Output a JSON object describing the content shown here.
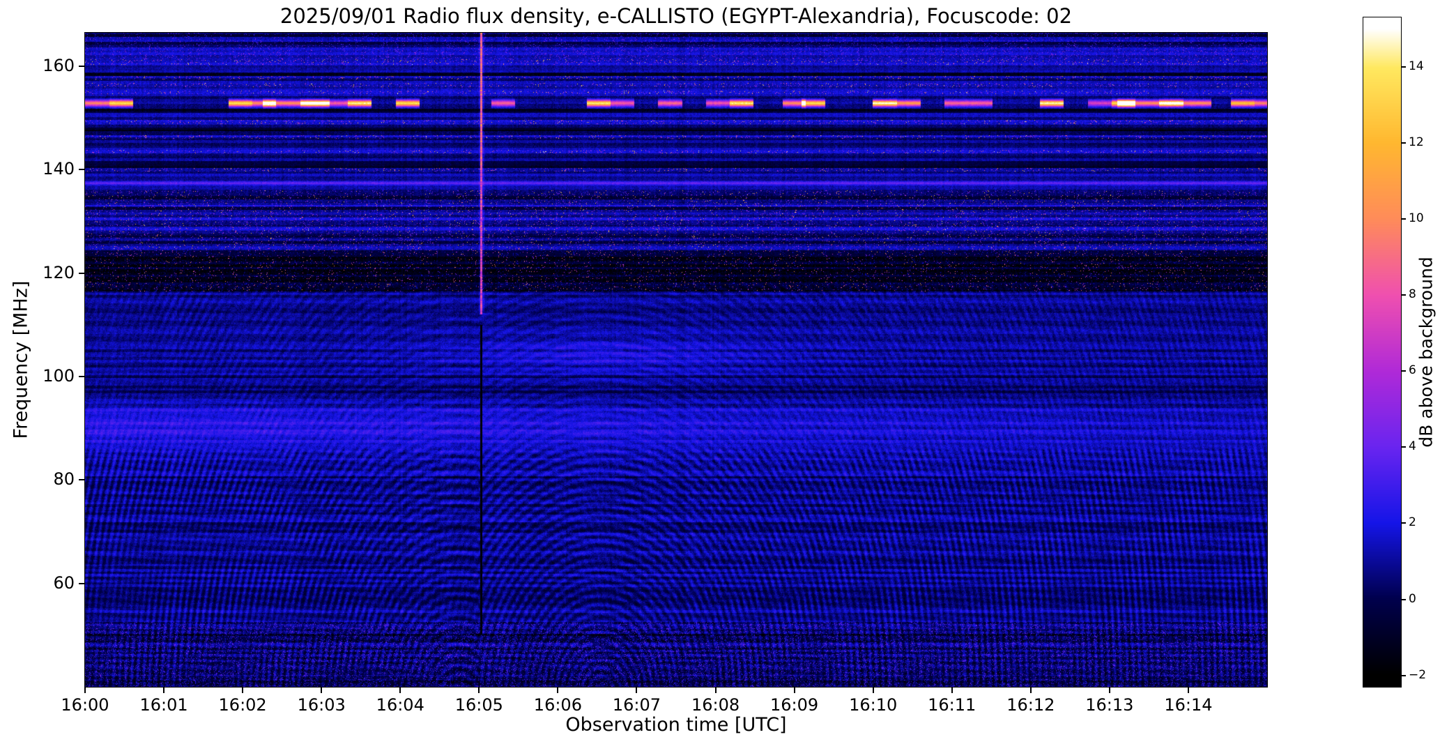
{
  "chart_data": {
    "type": "heatmap",
    "title": "2025/09/01  Radio flux density, e-CALLISTO (EGYPT-Alexandria), Focuscode: 02",
    "xlabel": "Observation time [UTC]",
    "ylabel": "Frequency [MHz]",
    "x_ticks": [
      "16:00",
      "16:01",
      "16:02",
      "16:03",
      "16:04",
      "16:05",
      "16:06",
      "16:07",
      "16:08",
      "16:09",
      "16:10",
      "16:11",
      "16:12",
      "16:13",
      "16:14"
    ],
    "x_range_minutes": [
      0,
      15
    ],
    "x_start_time_utc": "16:00",
    "y_ticks_mhz": [
      160,
      140,
      120,
      100,
      80,
      60
    ],
    "freq_range_mhz": [
      40,
      166.5
    ],
    "grid": false,
    "colorbar": {
      "label": "dB above background",
      "ticks": [
        14,
        12,
        10,
        8,
        6,
        4,
        2,
        0,
        -2
      ],
      "display_range": [
        -2.3,
        15.3
      ],
      "value_range_db": [
        -2,
        15
      ]
    },
    "colormap": {
      "name": "gnuplot2-like",
      "stops": [
        [
          0.0,
          "#000000"
        ],
        [
          0.118,
          "#00004d"
        ],
        [
          0.235,
          "#1515e8"
        ],
        [
          0.353,
          "#6a25f0"
        ],
        [
          0.47,
          "#b02ad8"
        ],
        [
          0.588,
          "#f050b0"
        ],
        [
          0.706,
          "#ff8c5a"
        ],
        [
          0.824,
          "#ffb830"
        ],
        [
          0.94,
          "#ffe960"
        ],
        [
          1.0,
          "#ffffff"
        ]
      ]
    },
    "features": [
      {
        "kind": "fringe_pattern",
        "desc": "Curved interference fringes across the band below ~118 MHz, strongest below ~86 MHz, arc systems centered near 16:06.5 and 16:04.75",
        "f_max": 118,
        "amp_strong": 0.85,
        "amp_weak": 0.45,
        "amp_split_mhz": 86,
        "centers": [
          {
            "t_min": 6.55,
            "f_mhz": 38,
            "k": 3.6
          },
          {
            "t_min": 4.75,
            "f_mhz": 34,
            "k": 3.2
          }
        ]
      },
      {
        "kind": "bright_band",
        "desc": "Diffuse bright blue band near 90 MHz fading toward later times",
        "f_center": 90.5,
        "f_sigma": 3.2,
        "amp": 1.6,
        "time_fade": -0.045
      },
      {
        "kind": "bright_patch",
        "desc": "Faint blue patch near 104 MHz around 16:06-16:07",
        "f_center": 104,
        "f_sigma": 2.6,
        "t_center": 6.6,
        "t_sigma": 1.6,
        "amp": 1.1
      },
      {
        "kind": "dark_band",
        "desc": "Dark blanked band 117-124 MHz with sparse bright speckles",
        "f_min": 116.5,
        "f_max": 124.5,
        "depth": 1.9
      },
      {
        "kind": "speckle_band",
        "desc": "Speckled RFI band 124-136 MHz with scattered bright points",
        "f_min": 124.5,
        "f_max": 136
      },
      {
        "kind": "spectral_line",
        "desc": "Narrow enhanced line near 137.4 MHz",
        "f_center": 137.4,
        "f_sigma": 0.3,
        "amp": 2.3
      },
      {
        "kind": "rfi_zone",
        "desc": "Strong intermittent RFI 139-161 MHz, alternating dark and active rows with bright bursts",
        "f_min": 139,
        "f_max": 161.5
      },
      {
        "kind": "segmented_line",
        "desc": "Bright intermittent carrier near 153 MHz, saturated segments around 16:02-16:03, ~16:09 and 16:13-16:14",
        "f_center": 152.9,
        "f_sigma": 0.45,
        "bright_intervals_min": [
          [
            2.25,
            3.1
          ],
          [
            8.85,
            9.15
          ],
          [
            13.1,
            14.3
          ]
        ]
      },
      {
        "kind": "edge_band",
        "desc": "Noisy speckled band above ~161 MHz",
        "f_min": 161.5
      },
      {
        "kind": "edge_band",
        "desc": "Noisy speckled band below ~52 MHz",
        "f_max": 52.5
      },
      {
        "kind": "vertical_streak",
        "desc": "Vertical feature at 16:05 - bright streak above ~112 MHz and thin dark line between ~50 and 110 MHz",
        "t_min": 5.03,
        "bright_above_mhz": 112,
        "dark_range_mhz": [
          50,
          110
        ]
      }
    ]
  }
}
